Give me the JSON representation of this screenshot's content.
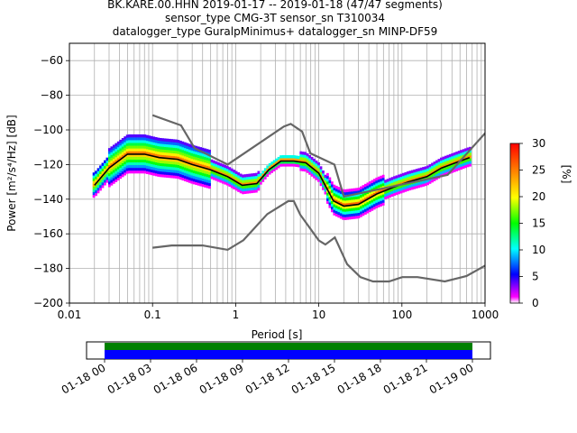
{
  "title": {
    "line1": "BK.KARE.00.HHN   2019-01-17 -- 2019-01-18  (47/47 segments)",
    "line2": "sensor_type CMG-3T sensor_sn T310034",
    "line3": "datalogger_type GuralpMinimus+ datalogger_sn MINP-DF59"
  },
  "chart_data": {
    "type": "heatmap",
    "xlabel": "Period [s]",
    "ylabel": "Power [m²/s⁴/Hz] [dB]",
    "xscale": "log",
    "xlim": [
      0.01,
      1000
    ],
    "ylim": [
      -200,
      -50
    ],
    "xticks": [
      {
        "value": 0.01,
        "label": "0.01"
      },
      {
        "value": 0.1,
        "label": "0.1"
      },
      {
        "value": 1,
        "label": "1"
      },
      {
        "value": 10,
        "label": "10"
      },
      {
        "value": 100,
        "label": "100"
      },
      {
        "value": 1000,
        "label": "1000"
      }
    ],
    "yticks": [
      -60,
      -80,
      -100,
      -120,
      -140,
      -160,
      -180,
      -200
    ],
    "grid": true,
    "colorbar": {
      "label": "[%]",
      "range": [
        0,
        30
      ],
      "ticks": [
        0,
        5,
        10,
        15,
        20,
        25,
        30
      ],
      "colors": [
        "#ffffff",
        "#ff00ff",
        "#0000ff",
        "#00ffff",
        "#00ff00",
        "#ffff00",
        "#ff8000",
        "#ff0000"
      ]
    },
    "series": [
      {
        "kind": "mode",
        "color": "#000000",
        "x": [
          0.02,
          0.03,
          0.05,
          0.08,
          0.12,
          0.2,
          0.3,
          0.5,
          0.8,
          1.2,
          1.8,
          2.5,
          3.5,
          5,
          7,
          10,
          15,
          20,
          30,
          50,
          80,
          120,
          200,
          300,
          500,
          650
        ],
        "y": [
          -132,
          -122,
          -114,
          -114,
          -116,
          -117,
          -120,
          -123,
          -127,
          -132,
          -131,
          -123,
          -118,
          -118,
          -119,
          -125,
          -141,
          -144,
          -143,
          -137,
          -133,
          -130,
          -127,
          -122,
          -118,
          -116
        ]
      },
      {
        "kind": "noise-model-high",
        "color": "#666666",
        "x": [
          0.1,
          0.22,
          0.32,
          0.8,
          3.8,
          4.6,
          6.3,
          7.9,
          15.4,
          20,
          354.8,
          10000
        ],
        "y": [
          -91.5,
          -97.4,
          -110.5,
          -120,
          -98,
          -96.5,
          -101,
          -113.5,
          -120,
          -138.5,
          -126,
          -48.5
        ]
      },
      {
        "kind": "noise-model-low",
        "color": "#666666",
        "x": [
          0.1,
          0.17,
          0.4,
          0.8,
          1.24,
          2.4,
          4.3,
          5,
          6,
          10,
          12,
          15.6,
          21.9,
          31.6,
          45,
          70,
          101,
          154,
          328,
          600,
          10000
        ],
        "y": [
          -168,
          -166.7,
          -166.7,
          -169.2,
          -163.7,
          -148.6,
          -141.1,
          -141.1,
          -149,
          -163.8,
          -166.2,
          -162.1,
          -177.5,
          -185,
          -187.5,
          -187.5,
          -185,
          -185,
          -187.5,
          -184.4,
          -151.5
        ]
      }
    ],
    "availability": {
      "x_tick_labels": [
        "01-18 00",
        "01-18 03",
        "01-18 06",
        "01-18 09",
        "01-18 12",
        "01-18 15",
        "01-18 18",
        "01-18 21",
        "01-19 00"
      ],
      "data_color": "#0000ff",
      "selected_color": "#008000"
    }
  }
}
